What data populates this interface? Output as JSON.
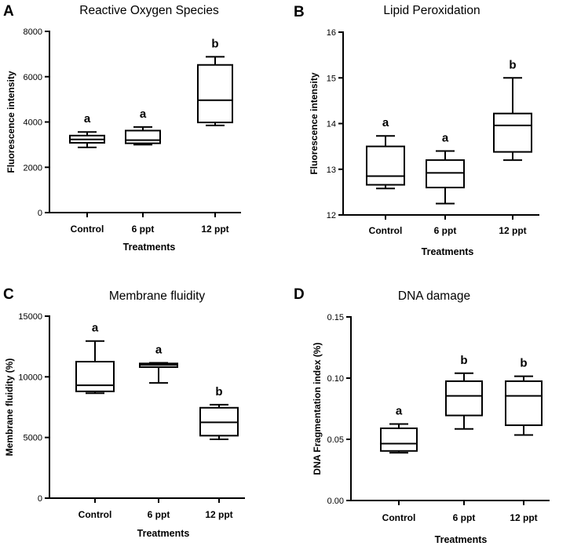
{
  "chart_data": [
    {
      "panel": "A",
      "type": "boxplot",
      "title": "Reactive Oxygen Species",
      "ylabel": "Fluorescence intensity",
      "xlabel": "Treatments",
      "ylim": [
        0,
        8000
      ],
      "yticks": [
        "0",
        "2000",
        "4000",
        "6000",
        "8000"
      ],
      "categories": [
        "Control",
        "6 ppt",
        "12 ppt"
      ],
      "boxes": [
        {
          "min": 2880,
          "q1": 3080,
          "median": 3230,
          "q3": 3400,
          "max": 3560,
          "label": "a"
        },
        {
          "min": 3000,
          "q1": 3060,
          "median": 3200,
          "q3": 3620,
          "max": 3780,
          "label": "a"
        },
        {
          "min": 3850,
          "q1": 3980,
          "median": 4960,
          "q3": 6520,
          "max": 6880,
          "label": "b"
        }
      ]
    },
    {
      "panel": "B",
      "type": "boxplot",
      "title": "Lipid Peroxidation",
      "ylabel": "Fluorescence intensity",
      "xlabel": "Treatments",
      "ylim": [
        12,
        16
      ],
      "yticks": [
        "12",
        "13",
        "14",
        "15",
        "16"
      ],
      "categories": [
        "Control",
        "6 ppt",
        "12 ppt"
      ],
      "boxes": [
        {
          "min": 12.58,
          "q1": 12.66,
          "median": 12.85,
          "q3": 13.5,
          "max": 13.73,
          "label": "a"
        },
        {
          "min": 12.25,
          "q1": 12.6,
          "median": 12.92,
          "q3": 13.2,
          "max": 13.4,
          "label": "a"
        },
        {
          "min": 13.2,
          "q1": 13.38,
          "median": 13.96,
          "q3": 14.22,
          "max": 15.0,
          "label": "b"
        }
      ]
    },
    {
      "panel": "C",
      "type": "boxplot",
      "title": "Membrane fluidity",
      "ylabel": "Membrane fluidity (%)",
      "xlabel": "Treatments",
      "ylim": [
        0,
        15000
      ],
      "yticks": [
        "0",
        "5000",
        "10000",
        "15000"
      ],
      "categories": [
        "Control",
        "6 ppt",
        "12 ppt"
      ],
      "boxes": [
        {
          "min": 8650,
          "q1": 8800,
          "median": 9300,
          "q3": 11250,
          "max": 12950,
          "label": "a"
        },
        {
          "min": 9500,
          "q1": 10800,
          "median": 10980,
          "q3": 11100,
          "max": 11150,
          "label": "a"
        },
        {
          "min": 4850,
          "q1": 5150,
          "median": 6250,
          "q3": 7450,
          "max": 7700,
          "label": "b"
        }
      ]
    },
    {
      "panel": "D",
      "type": "boxplot",
      "title": "DNA damage",
      "ylabel": "DNA Fragmentation index (%)",
      "xlabel": "Treatments",
      "ylim": [
        0,
        0.15
      ],
      "yticks": [
        "0.00",
        "0.05",
        "0.10",
        "0.15"
      ],
      "categories": [
        "Control",
        "6 ppt",
        "12 ppt"
      ],
      "boxes": [
        {
          "min": 0.039,
          "q1": 0.0405,
          "median": 0.0465,
          "q3": 0.059,
          "max": 0.0625,
          "label": "a"
        },
        {
          "min": 0.0585,
          "q1": 0.0695,
          "median": 0.0855,
          "q3": 0.0975,
          "max": 0.104,
          "label": "b"
        },
        {
          "min": 0.0535,
          "q1": 0.0615,
          "median": 0.0855,
          "q3": 0.0975,
          "max": 0.1015,
          "label": "b"
        }
      ]
    }
  ]
}
